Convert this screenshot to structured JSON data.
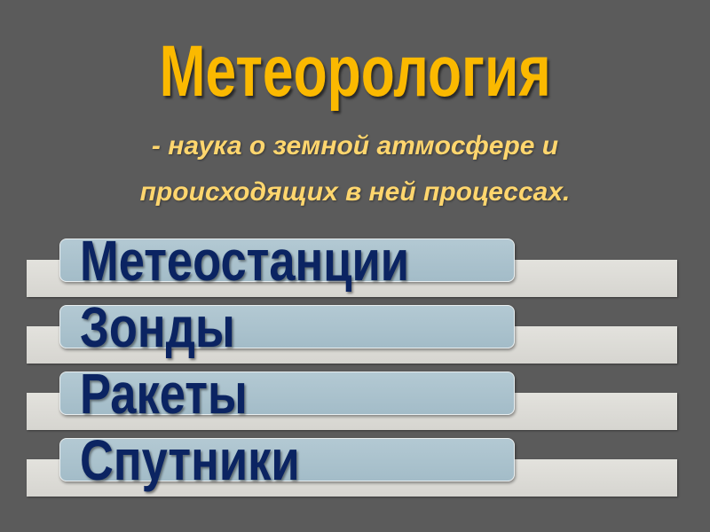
{
  "slide": {
    "title": "Метеорология",
    "subtitle_line1": "- наука о земной атмосфере и",
    "subtitle_line2": "происходящих в ней процессах.",
    "items": [
      {
        "label": "Метеостанции"
      },
      {
        "label": "Зонды"
      },
      {
        "label": "Ракеты"
      },
      {
        "label": "Спутники"
      }
    ]
  },
  "colors": {
    "background": "#5b5b5b",
    "title": "#fbb900",
    "subtitle": "#ffd66e",
    "item_text": "#0b2462",
    "item_fill": "#a9c1cc",
    "item_bar": "#dcdbd6"
  }
}
